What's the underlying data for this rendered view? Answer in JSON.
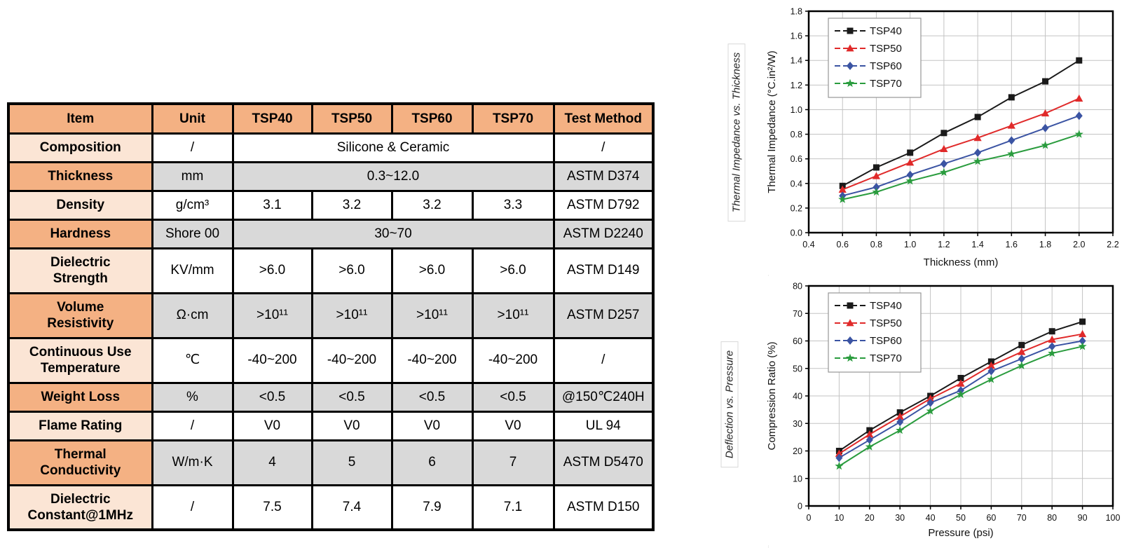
{
  "colors": {
    "header_orange": "#F4B183",
    "row_peach": "#FBE5D5",
    "row_gray": "#D9D9D9",
    "tsp40": "#1a1a1a",
    "tsp50": "#e02a2a",
    "tsp60": "#3b54a3",
    "tsp70": "#2a9c3e"
  },
  "table": {
    "headers": [
      "Item",
      "Unit",
      "TSP40",
      "TSP50",
      "TSP60",
      "TSP70",
      "Test Method"
    ],
    "rows": [
      {
        "item": "Composition",
        "tint": "peach",
        "shade": "white",
        "unit": "/",
        "merged": "Silicone & Ceramic",
        "test": "/"
      },
      {
        "item": "Thickness",
        "tint": "orange",
        "shade": "gray",
        "unit": "mm",
        "merged": "0.3~12.0",
        "test": "ASTM D374"
      },
      {
        "item": "Density",
        "tint": "peach",
        "shade": "white",
        "unit": "g/cm³",
        "values": [
          "3.1",
          "3.2",
          "3.2",
          "3.3"
        ],
        "test": "ASTM D792"
      },
      {
        "item": "Hardness",
        "tint": "orange",
        "shade": "gray",
        "unit": "Shore 00",
        "merged": "30~70",
        "test": "ASTM D2240"
      },
      {
        "item": "Dielectric\nStrength",
        "tint": "peach",
        "shade": "white",
        "unit": "KV/mm",
        "values": [
          ">6.0",
          ">6.0",
          ">6.0",
          ">6.0"
        ],
        "test": "ASTM D149",
        "tall": true
      },
      {
        "item": "Volume\nResistivity",
        "tint": "orange",
        "shade": "gray",
        "unit": "Ω·cm",
        "values": [
          ">10¹¹",
          ">10¹¹",
          ">10¹¹",
          ">10¹¹"
        ],
        "test": "ASTM D257",
        "tall": true
      },
      {
        "item": "Continuous Use\nTemperature",
        "tint": "peach",
        "shade": "white",
        "unit": "℃",
        "values": [
          "-40~200",
          "-40~200",
          "-40~200",
          "-40~200"
        ],
        "test": "/",
        "tall": true
      },
      {
        "item": "Weight Loss",
        "tint": "orange",
        "shade": "gray",
        "unit": "%",
        "values": [
          "<0.5",
          "<0.5",
          "<0.5",
          "<0.5"
        ],
        "test": "@150℃240H"
      },
      {
        "item": "Flame Rating",
        "tint": "peach",
        "shade": "white",
        "unit": "/",
        "values": [
          "V0",
          "V0",
          "V0",
          "V0"
        ],
        "test": "UL 94"
      },
      {
        "item": "Thermal\nConductivity",
        "tint": "orange",
        "shade": "gray",
        "unit": "W/m·K",
        "values": [
          "4",
          "5",
          "6",
          "7"
        ],
        "test": "ASTM D5470",
        "tall": true
      },
      {
        "item": "Dielectric\nConstant@1MHz",
        "tint": "peach",
        "shade": "white",
        "unit": "/",
        "values": [
          "7.5",
          "7.4",
          "7.9",
          "7.1"
        ],
        "test": "ASTM D150",
        "tall": true
      }
    ]
  },
  "side_labels": [
    {
      "text": "Thermal Impedance vs. Thickness"
    },
    {
      "text": "Deflection vs. Pressure"
    }
  ],
  "chart_data": [
    {
      "type": "line",
      "title": "Thermal Impedance vs. Thickness",
      "xlabel": "Thickness (mm)",
      "ylabel": "Thermal Impedance (°C.in²/W)",
      "xlim": [
        0.4,
        2.2
      ],
      "ylim": [
        0,
        1.8
      ],
      "xticks": [
        0.4,
        0.6,
        0.8,
        1.0,
        1.2,
        1.4,
        1.6,
        1.8,
        2.0,
        2.2
      ],
      "xtick_labels": [
        "0.4",
        "0.6",
        "0.8",
        "1.0",
        "1.2",
        "1.4",
        "1.6",
        "1.8",
        "2.0",
        "2.2"
      ],
      "yticks": [
        0,
        0.2,
        0.4,
        0.6,
        0.8,
        1.0,
        1.2,
        1.4,
        1.6,
        1.8
      ],
      "ytick_labels": [
        "0.0",
        "0.2",
        "0.4",
        "0.6",
        "0.8",
        "1.0",
        "1.2",
        "1.4",
        "1.6",
        "1.8"
      ],
      "grid": true,
      "legend_position": "top-left",
      "x": [
        0.6,
        0.8,
        1.0,
        1.2,
        1.4,
        1.6,
        1.8,
        2.0
      ],
      "series": [
        {
          "name": "TSP40",
          "marker": "square",
          "color": "#1a1a1a",
          "values": [
            0.38,
            0.53,
            0.65,
            0.81,
            0.94,
            1.1,
            1.23,
            1.4
          ]
        },
        {
          "name": "TSP50",
          "marker": "triangle",
          "color": "#e02a2a",
          "values": [
            0.35,
            0.46,
            0.57,
            0.68,
            0.77,
            0.87,
            0.97,
            1.09
          ]
        },
        {
          "name": "TSP60",
          "marker": "diamond",
          "color": "#3b54a3",
          "values": [
            0.3,
            0.37,
            0.47,
            0.56,
            0.65,
            0.75,
            0.85,
            0.95
          ]
        },
        {
          "name": "TSP70",
          "marker": "star",
          "color": "#2a9c3e",
          "values": [
            0.27,
            0.33,
            0.42,
            0.49,
            0.58,
            0.64,
            0.71,
            0.8
          ]
        }
      ]
    },
    {
      "type": "line",
      "title": "Deflection vs. Pressure",
      "xlabel": "Pressure (psi)",
      "ylabel": "Compression Ratio (%)",
      "xlim": [
        0,
        100
      ],
      "ylim": [
        0,
        80
      ],
      "xticks": [
        0,
        10,
        20,
        30,
        40,
        50,
        60,
        70,
        80,
        90,
        100
      ],
      "xtick_labels": [
        "0",
        "10",
        "20",
        "30",
        "40",
        "50",
        "60",
        "70",
        "80",
        "90",
        "100"
      ],
      "yticks": [
        0,
        10,
        20,
        30,
        40,
        50,
        60,
        70,
        80
      ],
      "ytick_labels": [
        "0",
        "10",
        "20",
        "30",
        "40",
        "50",
        "60",
        "70",
        "80"
      ],
      "grid": true,
      "legend_position": "top-left",
      "x": [
        10,
        20,
        30,
        40,
        50,
        60,
        70,
        80,
        90
      ],
      "series": [
        {
          "name": "TSP40",
          "marker": "square",
          "color": "#1a1a1a",
          "values": [
            20.0,
            27.5,
            34.0,
            40.0,
            46.5,
            52.5,
            58.5,
            63.5,
            67.0
          ]
        },
        {
          "name": "TSP50",
          "marker": "triangle",
          "color": "#e02a2a",
          "values": [
            19.0,
            26.0,
            32.5,
            39.0,
            44.5,
            51.0,
            56.0,
            60.5,
            62.5
          ]
        },
        {
          "name": "TSP60",
          "marker": "diamond",
          "color": "#3b54a3",
          "values": [
            17.5,
            24.0,
            30.5,
            37.5,
            42.0,
            49.0,
            53.5,
            58.0,
            60.0
          ]
        },
        {
          "name": "TSP70",
          "marker": "star",
          "color": "#2a9c3e",
          "values": [
            14.5,
            21.5,
            27.5,
            34.5,
            40.5,
            46.0,
            51.0,
            55.5,
            58.0
          ]
        }
      ]
    }
  ]
}
